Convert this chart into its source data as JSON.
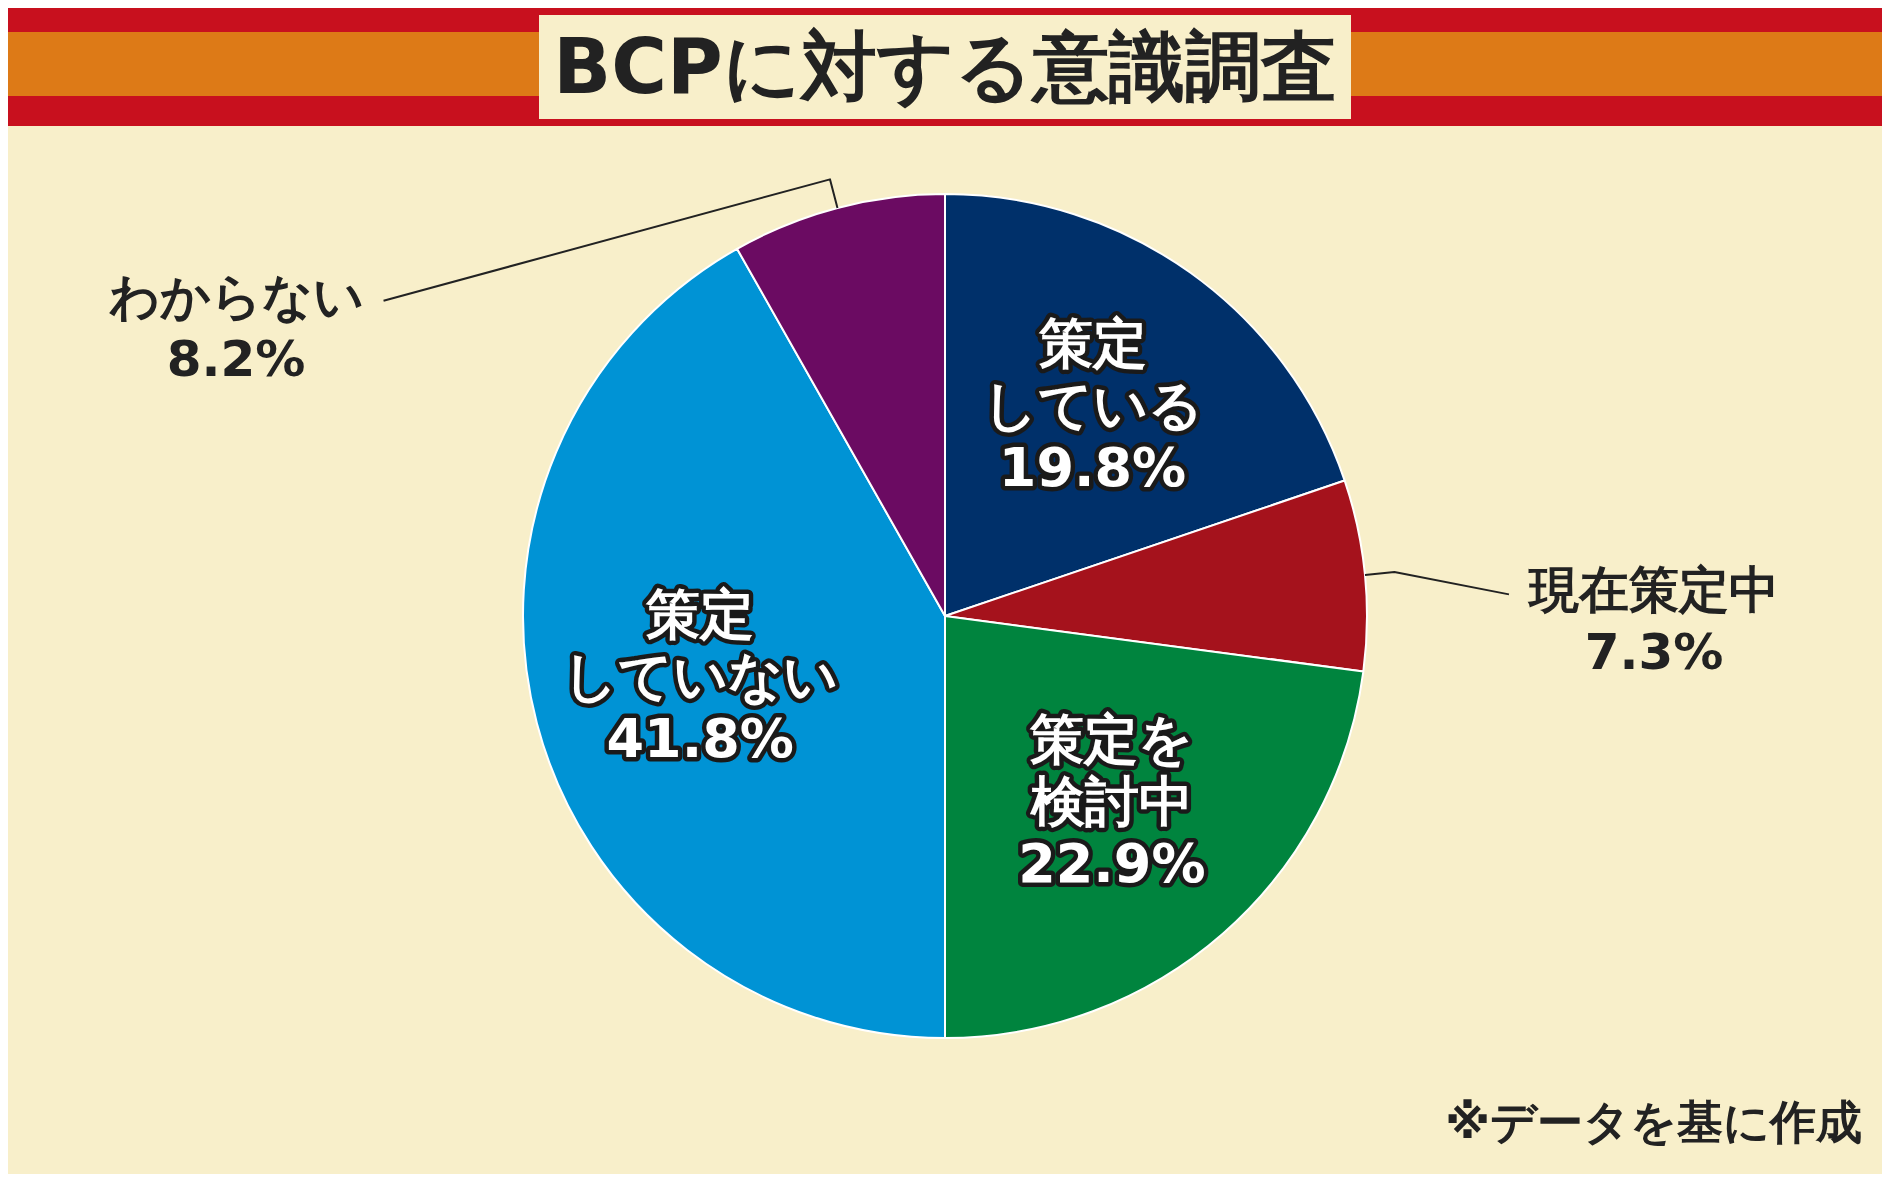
{
  "chart_data": {
    "type": "pie",
    "title": "BCPに対する意識調査",
    "categories": [
      "策定している",
      "現在策定中",
      "策定を検討中",
      "策定していない",
      "わからない"
    ],
    "values": [
      19.8,
      7.3,
      22.9,
      41.8,
      8.2
    ],
    "value_labels": [
      "19.8%",
      "7.3%",
      "22.9%",
      "41.8%",
      "8.2%"
    ],
    "colors": [
      "#00306a",
      "#a5121c",
      "#00843e",
      "#0093d5",
      "#6b0b62"
    ],
    "data_labels": true,
    "legend": false,
    "annotations": [
      "※データを基に作成"
    ]
  }
}
